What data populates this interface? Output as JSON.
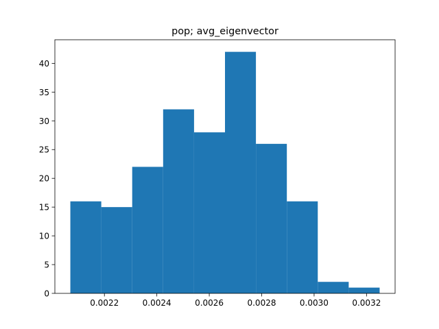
{
  "chart_data": {
    "type": "bar",
    "title": "pop; avg_eigenvector",
    "xlabel": "",
    "ylabel": "",
    "bin_edges": [
      0.00207,
      0.002188,
      0.002306,
      0.002424,
      0.002542,
      0.00266,
      0.002778,
      0.002896,
      0.003014,
      0.003132,
      0.00325
    ],
    "values": [
      16,
      15,
      22,
      32,
      28,
      42,
      26,
      16,
      2,
      1
    ],
    "xlim": [
      0.002011,
      0.003309
    ],
    "ylim": [
      0,
      44.1
    ],
    "xticks": [
      0.0022,
      0.0024,
      0.0026,
      0.0028,
      0.003,
      0.0032
    ],
    "xtick_labels": [
      "0.0022",
      "0.0024",
      "0.0026",
      "0.0028",
      "0.0030",
      "0.0032"
    ],
    "yticks": [
      0,
      5,
      10,
      15,
      20,
      25,
      30,
      35,
      40
    ],
    "ytick_labels": [
      "0",
      "5",
      "10",
      "15",
      "20",
      "25",
      "30",
      "35",
      "40"
    ],
    "bar_color": "#1f77b4",
    "grid": false,
    "legend": "none"
  }
}
